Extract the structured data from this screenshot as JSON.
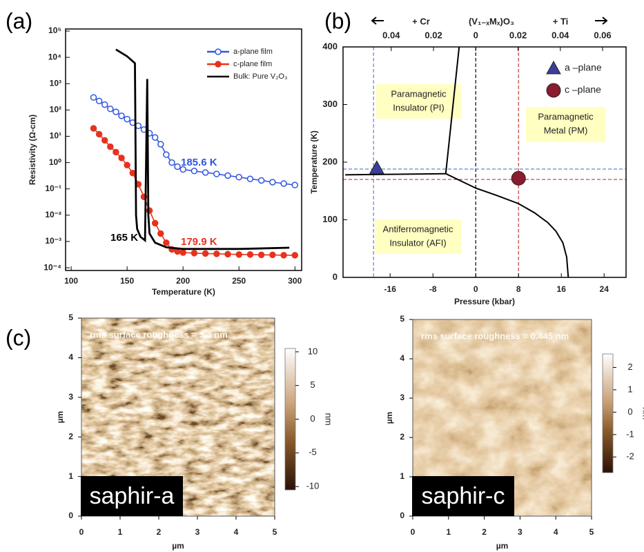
{
  "chart_data": [
    {
      "type": "line",
      "panel_label": "(a)",
      "xlabel": "Temperature (K)",
      "ylabel": "Resistivity (Ω-cm)",
      "log_y": true,
      "xlim": [
        95,
        306
      ],
      "ylim": [
        7.9e-05,
        120000
      ],
      "xticks": [
        100,
        150,
        200,
        250,
        300
      ],
      "yticks": [
        {
          "value": 0.0001,
          "label": "10⁻⁴"
        },
        {
          "value": 0.001,
          "label": "10⁻³"
        },
        {
          "value": 0.01,
          "label": "10⁻²"
        },
        {
          "value": 0.1,
          "label": "10⁻¹"
        },
        {
          "value": 1,
          "label": "10⁰"
        },
        {
          "value": 10,
          "label": "10¹"
        },
        {
          "value": 100,
          "label": "10²"
        },
        {
          "value": 1000,
          "label": "10³"
        },
        {
          "value": 10000,
          "label": "10⁴"
        },
        {
          "value": 100000,
          "label": "10⁵"
        }
      ],
      "legend": "upper right",
      "series": [
        {
          "name": "a-plane film",
          "color": "#2f55e0",
          "marker": "open",
          "x": [
            120,
            125,
            130,
            135,
            140,
            145,
            150,
            155,
            160,
            165,
            170,
            175,
            180,
            185,
            190,
            195,
            200,
            210,
            220,
            230,
            240,
            250,
            260,
            270,
            280,
            290,
            300
          ],
          "values": [
            300,
            220,
            160,
            110,
            85,
            60,
            45,
            33,
            25,
            18,
            13,
            9,
            5,
            2,
            1,
            0.7,
            0.55,
            0.48,
            0.42,
            0.37,
            0.32,
            0.28,
            0.24,
            0.21,
            0.18,
            0.16,
            0.14
          ]
        },
        {
          "name": "c-plane film",
          "color": "#e8321e",
          "marker": "filled",
          "x": [
            120,
            125,
            130,
            135,
            140,
            145,
            150,
            155,
            160,
            165,
            170,
            175,
            180,
            185,
            190,
            195,
            200,
            210,
            220,
            230,
            240,
            250,
            260,
            270,
            280,
            290,
            300
          ],
          "values": [
            20,
            12,
            7,
            4,
            2.5,
            1.5,
            0.8,
            0.4,
            0.15,
            0.05,
            0.015,
            0.005,
            0.002,
            0.0009,
            0.0005,
            0.00042,
            0.00038,
            0.00036,
            0.00035,
            0.00034,
            0.00033,
            0.00032,
            0.00032,
            0.00031,
            0.00031,
            0.0003,
            0.0003
          ]
        },
        {
          "name": "Bulk: Pure V₂O₃",
          "color": "#000000",
          "marker": null,
          "x": [
            140,
            150,
            157,
            158,
            159,
            162,
            166,
            168,
            169,
            170,
            175,
            185,
            200,
            250,
            295
          ],
          "values": [
            20000,
            11000,
            6000,
            0.01,
            0.003,
            0.0015,
            0.0011,
            1500,
            0.01,
            0.002,
            0.0009,
            0.0006,
            0.00052,
            0.00052,
            0.00058
          ]
        }
      ],
      "annotations": [
        {
          "text": "185.6 K",
          "color": "#2f55e0"
        },
        {
          "text": "179.9 K",
          "color": "#e8321e"
        },
        {
          "text": "165 K",
          "color": "#000000"
        }
      ]
    },
    {
      "type": "line",
      "panel_label": "(b)",
      "xlabel": "Pressure (kbar)",
      "ylabel": "Temperature (K)",
      "xlim": [
        -24.8,
        28.1
      ],
      "ylim": [
        0,
        400
      ],
      "xticks": [
        -16,
        -8,
        0,
        8,
        16,
        24
      ],
      "yticks": [
        0,
        100,
        200,
        300,
        400
      ],
      "x2lim": [
        -0.0628,
        0.0711
      ],
      "x2ticks": [
        {
          "value": -0.04,
          "label": "0.04"
        },
        {
          "value": -0.02,
          "label": "0.02"
        },
        0,
        0.02,
        0.04,
        0.06
      ],
      "top_labels": [
        "+ Cr",
        "(V₁₋ₓMₓ)O₃",
        "+ Ti"
      ],
      "lines": [
        {
          "color": "#000000",
          "x": [
            -3.1,
            -5.6,
            0,
            4,
            8,
            11,
            13.5,
            15,
            16.3,
            17,
            17.3
          ],
          "values": [
            400,
            180,
            155,
            142,
            128,
            112,
            95,
            80,
            60,
            35,
            0
          ]
        },
        {
          "color": "#000000",
          "x": [
            -24.4,
            -5.6
          ],
          "values": [
            178,
            180
          ]
        }
      ],
      "vlines": [
        {
          "x": -19.1,
          "color": "#5b84d6"
        },
        {
          "x": 0,
          "color": "#000000"
        },
        {
          "x": 8,
          "color": "#c0392b"
        }
      ],
      "hlines": [
        {
          "y": 188,
          "color": "#5b84d6"
        },
        {
          "y": 170,
          "color": "#c0392b"
        }
      ],
      "legend": "upper right",
      "series": [
        {
          "name": "a –plane",
          "color": "#3c3f99",
          "marker": "triangle",
          "x": [
            -18.5
          ],
          "values": [
            190
          ]
        },
        {
          "name": "c –plane",
          "color": "#8b1b2e",
          "marker": "circle",
          "x": [
            8
          ],
          "values": [
            172
          ]
        }
      ],
      "regions": [
        [
          "Paramagnetic",
          "Insulator (PI)"
        ],
        [
          "Paramagnetic",
          "Metal (PM)"
        ],
        [
          "Antiferromagnetic",
          "Insulator (AFI)"
        ]
      ]
    },
    {
      "type": "image",
      "panel_label": "(c)",
      "title": "rms surface roughness = 3.4 nm",
      "label": "saphir-a",
      "xlabel": "µm",
      "ylabel": "µm",
      "xlim": [
        0,
        5
      ],
      "ylim": [
        0,
        5
      ],
      "xticks": [
        0,
        1,
        2,
        3,
        4,
        5
      ],
      "yticks": [
        0,
        1,
        2,
        3,
        4,
        5
      ],
      "clim": [
        -10.5,
        10.5
      ],
      "cticks": [
        10,
        5,
        0,
        -5,
        -10
      ],
      "clabel": "nm"
    },
    {
      "type": "image",
      "title": "rms surface roughness = 0.445 nm",
      "label": "saphir-c",
      "xlabel": "µm",
      "ylabel": "µm",
      "xlim": [
        0,
        5
      ],
      "ylim": [
        0,
        5
      ],
      "xticks": [
        0,
        1,
        2,
        3,
        4,
        5
      ],
      "yticks": [
        0,
        1,
        2,
        3,
        4,
        5
      ],
      "clim": [
        -2.7,
        2.6
      ],
      "cticks": [
        2,
        1,
        0,
        -1,
        -2
      ],
      "clabel": "nm"
    }
  ]
}
